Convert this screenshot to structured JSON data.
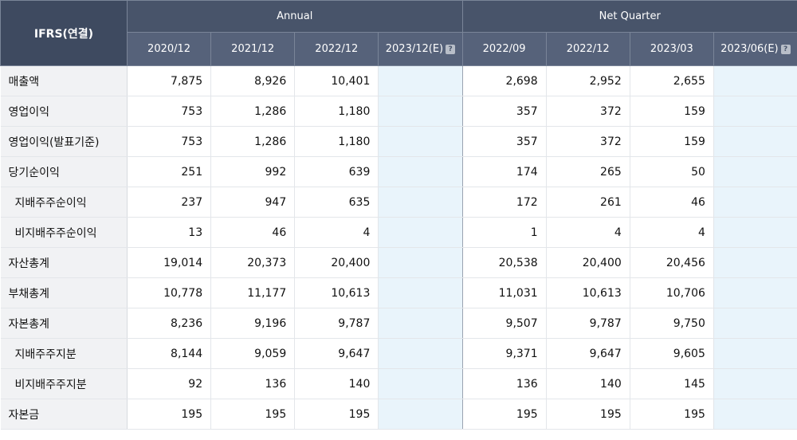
{
  "header": {
    "corner_label": "IFRS(연결)",
    "group_annual": "Annual",
    "group_quarter": "Net Quarter",
    "annual_periods": [
      "2020/12",
      "2021/12",
      "2022/12",
      "2023/12(E)"
    ],
    "quarter_periods": [
      "2022/09",
      "2022/12",
      "2023/03",
      "2023/06(E)"
    ],
    "help_icon_glyph": "?"
  },
  "rows": [
    {
      "label": "매출액",
      "indent": false,
      "annual": [
        "7,875",
        "8,926",
        "10,401",
        ""
      ],
      "quarter": [
        "2,698",
        "2,952",
        "2,655",
        ""
      ]
    },
    {
      "label": "영업이익",
      "indent": false,
      "annual": [
        "753",
        "1,286",
        "1,180",
        ""
      ],
      "quarter": [
        "357",
        "372",
        "159",
        ""
      ]
    },
    {
      "label": "영업이익(발표기준)",
      "indent": false,
      "annual": [
        "753",
        "1,286",
        "1,180",
        ""
      ],
      "quarter": [
        "357",
        "372",
        "159",
        ""
      ]
    },
    {
      "label": "당기순이익",
      "indent": false,
      "annual": [
        "251",
        "992",
        "639",
        ""
      ],
      "quarter": [
        "174",
        "265",
        "50",
        ""
      ]
    },
    {
      "label": "지배주주순이익",
      "indent": true,
      "annual": [
        "237",
        "947",
        "635",
        ""
      ],
      "quarter": [
        "172",
        "261",
        "46",
        ""
      ]
    },
    {
      "label": "비지배주주순이익",
      "indent": true,
      "annual": [
        "13",
        "46",
        "4",
        ""
      ],
      "quarter": [
        "1",
        "4",
        "4",
        ""
      ]
    },
    {
      "label": "자산총계",
      "indent": false,
      "annual": [
        "19,014",
        "20,373",
        "20,400",
        ""
      ],
      "quarter": [
        "20,538",
        "20,400",
        "20,456",
        ""
      ]
    },
    {
      "label": "부채총계",
      "indent": false,
      "annual": [
        "10,778",
        "11,177",
        "10,613",
        ""
      ],
      "quarter": [
        "11,031",
        "10,613",
        "10,706",
        ""
      ]
    },
    {
      "label": "자본총계",
      "indent": false,
      "annual": [
        "8,236",
        "9,196",
        "9,787",
        ""
      ],
      "quarter": [
        "9,507",
        "9,787",
        "9,750",
        ""
      ]
    },
    {
      "label": "지배주주지분",
      "indent": true,
      "annual": [
        "8,144",
        "9,059",
        "9,647",
        ""
      ],
      "quarter": [
        "9,371",
        "9,647",
        "9,605",
        ""
      ]
    },
    {
      "label": "비지배주주지분",
      "indent": true,
      "annual": [
        "92",
        "136",
        "140",
        ""
      ],
      "quarter": [
        "136",
        "140",
        "145",
        ""
      ]
    },
    {
      "label": "자본금",
      "indent": false,
      "annual": [
        "195",
        "195",
        "195",
        ""
      ],
      "quarter": [
        "195",
        "195",
        "195",
        ""
      ]
    }
  ],
  "colors": {
    "header_bg": "#48546a",
    "label_bg": "#f1f2f4",
    "estimate_bg": "#e9f4fb"
  }
}
